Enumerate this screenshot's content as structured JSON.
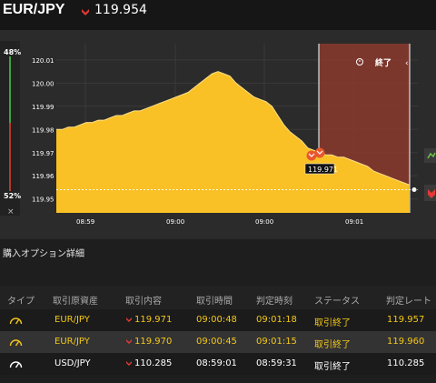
{
  "header": {
    "pair": "EUR/JPY",
    "price": "119.954",
    "direction_icon": "down-arrow-icon"
  },
  "gauge": {
    "top_pct": "48%",
    "bottom_pct": "52%",
    "close": "×"
  },
  "chart_data": {
    "type": "area",
    "y_ticks": [
      "120.01",
      "120.00",
      "119.99",
      "119.98",
      "119.97",
      "119.96",
      "119.95"
    ],
    "x_ticks": [
      "08:59",
      "09:00",
      "09:00",
      "09:01",
      "09:01"
    ],
    "ylim": [
      119.944,
      120.017
    ],
    "values": [
      119.98,
      119.98,
      119.981,
      119.981,
      119.982,
      119.983,
      119.983,
      119.984,
      119.984,
      119.985,
      119.986,
      119.986,
      119.987,
      119.988,
      119.988,
      119.989,
      119.99,
      119.991,
      119.992,
      119.993,
      119.994,
      119.995,
      119.996,
      119.998,
      120.0,
      120.002,
      120.004,
      120.005,
      120.004,
      120.003,
      120.0,
      119.998,
      119.996,
      119.994,
      119.993,
      119.992,
      119.99,
      119.986,
      119.982,
      119.979,
      119.977,
      119.975,
      119.972,
      119.971,
      119.97,
      119.969,
      119.969,
      119.968,
      119.968,
      119.967,
      119.966,
      119.965,
      119.964,
      119.962,
      119.961,
      119.96,
      119.959,
      119.958,
      119.957,
      119.956
    ],
    "expiry_label": "終了",
    "current_price_line": 119.954,
    "markers": [
      {
        "value": 119.971,
        "label": "119.971"
      }
    ]
  },
  "section_title": "購入オプション詳細",
  "table": {
    "headers": [
      "タイプ",
      "取引原資産",
      "取引内容",
      "取引時間",
      "判定時刻",
      "ステータス",
      "判定レート"
    ],
    "rows": [
      {
        "asset": "EUR/JPY",
        "content": "119.971",
        "time": "09:00:48",
        "judge_time": "09:01:18",
        "status": "取引終了",
        "rate": "119.957",
        "color": "yellow"
      },
      {
        "asset": "EUR/JPY",
        "content": "119.970",
        "time": "09:00:45",
        "judge_time": "09:01:15",
        "status": "取引終了",
        "rate": "119.960",
        "color": "yellow"
      },
      {
        "asset": "USD/JPY",
        "content": "110.285",
        "time": "08:59:01",
        "judge_time": "08:59:31",
        "status": "取引終了",
        "rate": "110.285",
        "color": "white"
      }
    ]
  }
}
